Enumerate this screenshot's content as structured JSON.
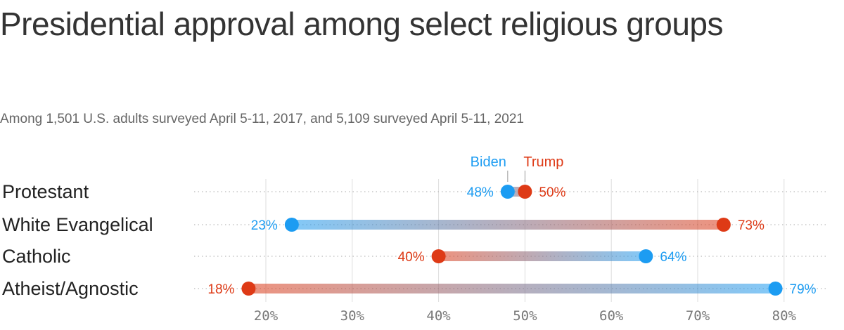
{
  "title": "Presidential approval among select religious groups",
  "subtitle": "Among 1,501 U.S. adults surveyed April 5-11, 2017, and 5,109 surveyed April 5-11, 2021",
  "colors": {
    "biden": "#1c9cf2",
    "trump": "#de3a16",
    "grid": "#dddddd",
    "dots": "#bbbbbb"
  },
  "chart_data": {
    "type": "dumbbell",
    "categories": [
      "Protestant",
      "White Evangelical",
      "Catholic",
      "Atheist/Agnostic"
    ],
    "series": [
      {
        "name": "Biden",
        "values": [
          48,
          23,
          64,
          79
        ]
      },
      {
        "name": "Trump",
        "values": [
          50,
          73,
          40,
          18
        ]
      }
    ],
    "value_labels": {
      "Biden": [
        "48%",
        "23%",
        "64%",
        "79%"
      ],
      "Trump": [
        "50%",
        "73%",
        "40%",
        "18%"
      ]
    },
    "x_ticks": [
      20,
      30,
      40,
      50,
      60,
      70,
      80
    ],
    "x_tick_labels": [
      "20%",
      "30%",
      "40%",
      "50%",
      "60%",
      "70%",
      "80%"
    ],
    "xlim": [
      12,
      84
    ],
    "grid": true,
    "legend_placement": "above first row, labels pointing to dots"
  }
}
